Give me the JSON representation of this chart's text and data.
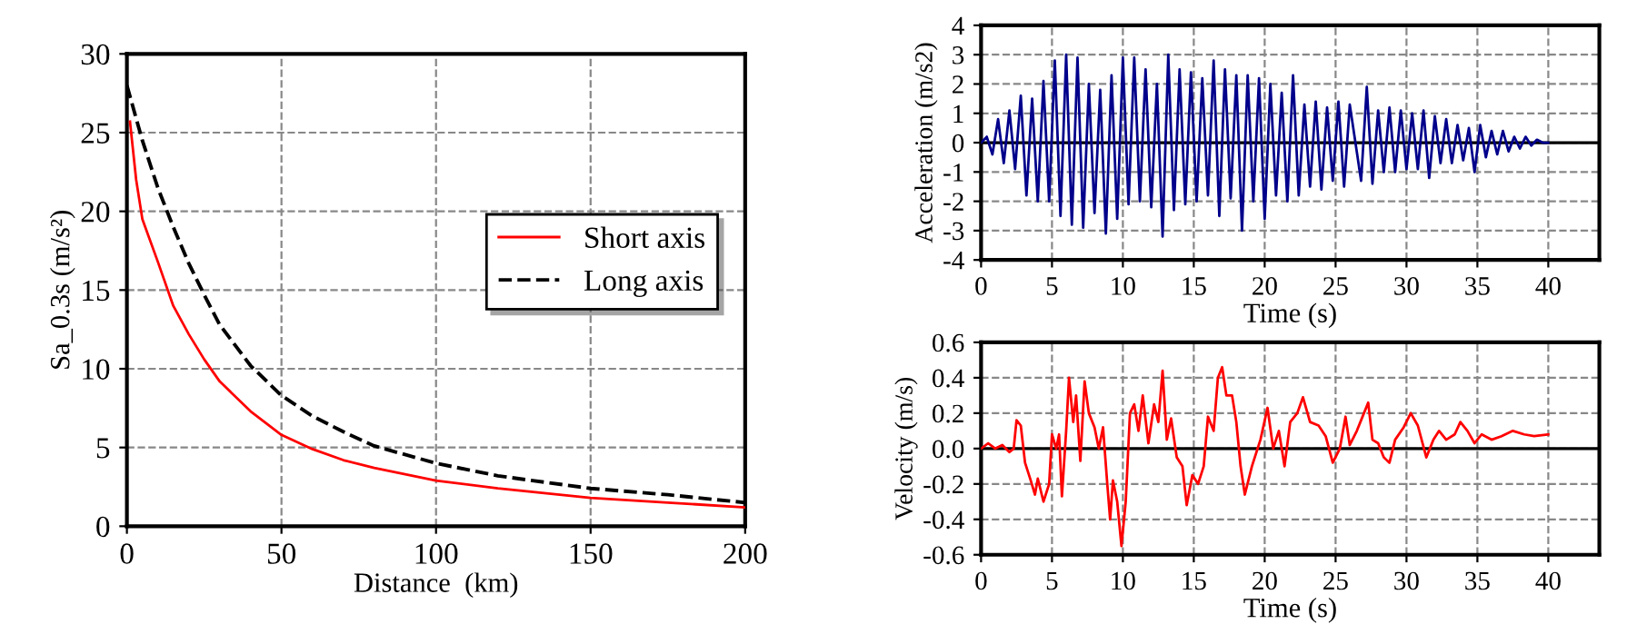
{
  "chart_data": [
    {
      "type": "line",
      "xlabel": "Distance  (km)",
      "ylabel": "Sa_0.3s (m/s²)",
      "xlim": [
        0,
        200
      ],
      "ylim": [
        0,
        30
      ],
      "xticks": [
        0,
        50,
        100,
        150,
        200
      ],
      "yticks": [
        0,
        5,
        10,
        15,
        20,
        25,
        30
      ],
      "grid": true,
      "legend": "right",
      "marker": "none",
      "series": [
        {
          "name": "Short axis",
          "color": "#ff0000",
          "line_style": "solid",
          "x": [
            1,
            3,
            5,
            10,
            15,
            20,
            25,
            30,
            40,
            50,
            60,
            70,
            80,
            100,
            120,
            150,
            175,
            200
          ],
          "values": [
            25.7,
            22,
            19.5,
            16.8,
            14,
            12.2,
            10.6,
            9.2,
            7.3,
            5.8,
            4.9,
            4.2,
            3.7,
            2.9,
            2.4,
            1.8,
            1.5,
            1.2
          ]
        },
        {
          "name": "Long axis",
          "color": "#000000",
          "line_style": "dashed",
          "x": [
            0,
            5,
            10,
            15,
            20,
            25,
            30,
            40,
            50,
            60,
            70,
            80,
            100,
            120,
            150,
            175,
            200
          ],
          "values": [
            28,
            24.5,
            21.5,
            19,
            16.7,
            14.7,
            12.8,
            10.2,
            8.3,
            7,
            6,
            5.1,
            4,
            3.2,
            2.4,
            2,
            1.5
          ]
        }
      ]
    },
    {
      "type": "line",
      "xlabel": "Time (s)",
      "ylabel": "Acceleration (m/s2)",
      "xlim": [
        0,
        43.6
      ],
      "ylim": [
        -4,
        4
      ],
      "xticks": [
        0,
        5,
        10,
        15,
        20,
        25,
        30,
        35,
        40
      ],
      "yticks": [
        -4,
        -3,
        -2,
        -1,
        0,
        1,
        2,
        3,
        4
      ],
      "grid": true,
      "marker": "none",
      "ref_lines": [
        {
          "axis": "y",
          "value": 0,
          "color": "#000000"
        }
      ],
      "series": [
        {
          "color": "#00008b",
          "line_style": "solid",
          "x": [
            0,
            0.4,
            0.8,
            1.2,
            1.6,
            2.0,
            2.4,
            2.8,
            3.2,
            3.6,
            4.0,
            4.4,
            4.8,
            5.2,
            5.6,
            6.0,
            6.4,
            6.8,
            7.2,
            7.6,
            8.0,
            8.4,
            8.8,
            9.2,
            9.6,
            10.0,
            10.4,
            10.8,
            11.2,
            11.6,
            12.0,
            12.4,
            12.8,
            13.2,
            13.6,
            14.0,
            14.4,
            14.8,
            15.2,
            15.6,
            16.0,
            16.4,
            16.8,
            17.2,
            17.6,
            18.0,
            18.4,
            18.8,
            19.2,
            19.6,
            20.0,
            20.4,
            20.8,
            21.2,
            21.6,
            22.0,
            22.4,
            22.8,
            23.2,
            23.6,
            24.0,
            24.4,
            24.8,
            25.2,
            25.6,
            26.0,
            26.8,
            27.2,
            27.6,
            28.0,
            28.4,
            28.8,
            29.2,
            29.6,
            30.0,
            30.4,
            30.8,
            31.2,
            31.6,
            32.0,
            32.4,
            32.8,
            33.2,
            33.6,
            34.0,
            34.4,
            34.8,
            35.2,
            35.6,
            36.0,
            36.4,
            36.8,
            37.2,
            37.6,
            38.0,
            38.4,
            38.8,
            39.2,
            39.6,
            40.0
          ],
          "values": [
            0,
            0.2,
            -0.4,
            0.8,
            -0.7,
            1.1,
            -0.9,
            1.6,
            -1.8,
            1.5,
            -2.0,
            2.1,
            -2.0,
            2.8,
            -2.5,
            3.0,
            -2.8,
            2.9,
            -2.9,
            2.0,
            -2.4,
            1.8,
            -3.1,
            2.3,
            -2.6,
            2.9,
            -2.1,
            2.9,
            -2.0,
            2.5,
            -2.2,
            2.0,
            -3.2,
            3.0,
            -2.3,
            2.5,
            -2.1,
            2.4,
            -2.0,
            2.2,
            -1.8,
            2.8,
            -2.5,
            2.5,
            -1.9,
            2.3,
            -3.0,
            2.3,
            -2.0,
            2.2,
            -2.6,
            2.0,
            -1.8,
            1.7,
            -2.0,
            2.3,
            -1.8,
            1.3,
            -1.5,
            1.4,
            -1.6,
            1.2,
            -1.3,
            1.4,
            -1.5,
            1.3,
            -1.3,
            1.9,
            -1.4,
            1.1,
            -1.0,
            1.2,
            -1.0,
            1.1,
            -0.9,
            1.0,
            -0.9,
            1.1,
            -1.2,
            0.9,
            -0.7,
            0.8,
            -0.7,
            0.6,
            -0.6,
            0.5,
            -1.0,
            0.6,
            -0.5,
            0.4,
            -0.4,
            0.4,
            -0.3,
            0.2,
            -0.2,
            0.2,
            -0.1,
            0.1,
            0.0,
            0.0
          ]
        }
      ]
    },
    {
      "type": "line",
      "xlabel": "Time (s)",
      "ylabel": "Velocity (m/s)",
      "xlim": [
        0,
        43.6
      ],
      "ylim": [
        -0.6,
        0.6
      ],
      "xticks": [
        0,
        5,
        10,
        15,
        20,
        25,
        30,
        35,
        40
      ],
      "yticks": [
        {
          "value": -0.6,
          "label": "-0.6"
        },
        {
          "value": -0.4,
          "label": "-0.4"
        },
        {
          "value": -0.2,
          "label": "-0.2"
        },
        {
          "value": 0,
          "label": "0.0"
        },
        {
          "value": 0.2,
          "label": "0.2"
        },
        {
          "value": 0.4,
          "label": "0.4"
        },
        {
          "value": 0.6,
          "label": "0.6"
        }
      ],
      "grid": true,
      "marker": "none",
      "ref_lines": [
        {
          "axis": "y",
          "value": 0,
          "color": "#000000"
        }
      ],
      "series": [
        {
          "color": "#ff0000",
          "line_style": "solid",
          "x": [
            0,
            0.5,
            1,
            1.5,
            2,
            2.3,
            2.5,
            2.8,
            3.1,
            3.5,
            3.8,
            4.0,
            4.4,
            4.8,
            5.0,
            5.3,
            5.5,
            5.7,
            6.0,
            6.2,
            6.5,
            6.7,
            7.0,
            7.3,
            7.6,
            8.0,
            8.3,
            8.6,
            8.9,
            9.1,
            9.3,
            9.6,
            9.9,
            10.2,
            10.5,
            10.8,
            11.1,
            11.4,
            11.8,
            12.2,
            12.5,
            12.8,
            13.1,
            13.4,
            13.8,
            14.2,
            14.5,
            14.9,
            15.3,
            15.7,
            16.0,
            16.4,
            16.7,
            17.0,
            17.3,
            17.7,
            18.0,
            18.3,
            18.6,
            19.1,
            19.7,
            20.2,
            20.6,
            21.0,
            21.4,
            21.8,
            22.3,
            22.7,
            23.2,
            23.8,
            24.3,
            24.8,
            25.3,
            25.7,
            26.0,
            26.5,
            27.0,
            27.3,
            27.6,
            28.0,
            28.4,
            28.8,
            29.2,
            29.8,
            30.3,
            30.8,
            31.4,
            31.9,
            32.3,
            32.8,
            33.4,
            33.8,
            34.3,
            34.8,
            35.3,
            36,
            36.7,
            37.5,
            38.3,
            39,
            40
          ],
          "values": [
            0,
            0.03,
            0.0,
            0.02,
            -0.02,
            0.0,
            0.16,
            0.13,
            -0.08,
            -0.18,
            -0.26,
            -0.17,
            -0.3,
            -0.2,
            0.08,
            0.0,
            0.08,
            -0.27,
            0.1,
            0.4,
            0.15,
            0.3,
            -0.07,
            0.38,
            0.2,
            0.12,
            0.0,
            0.12,
            -0.2,
            -0.4,
            -0.18,
            -0.3,
            -0.55,
            -0.3,
            0.2,
            0.25,
            0.1,
            0.3,
            0.03,
            0.25,
            0.15,
            0.44,
            0.05,
            0.17,
            -0.05,
            -0.1,
            -0.32,
            -0.15,
            -0.2,
            -0.1,
            0.18,
            0.1,
            0.4,
            0.46,
            0.3,
            0.3,
            0.15,
            -0.1,
            -0.26,
            -0.1,
            0.05,
            0.23,
            0.0,
            0.1,
            -0.1,
            0.15,
            0.2,
            0.29,
            0.15,
            0.13,
            0.07,
            -0.08,
            0.0,
            0.18,
            0.02,
            0.1,
            0.2,
            0.26,
            0.05,
            0.03,
            -0.05,
            -0.08,
            0.05,
            0.12,
            0.2,
            0.13,
            -0.05,
            0.05,
            0.1,
            0.05,
            0.08,
            0.15,
            0.1,
            0.03,
            0.08,
            0.05,
            0.07,
            0.1,
            0.08,
            0.07,
            0.08
          ]
        }
      ]
    }
  ]
}
